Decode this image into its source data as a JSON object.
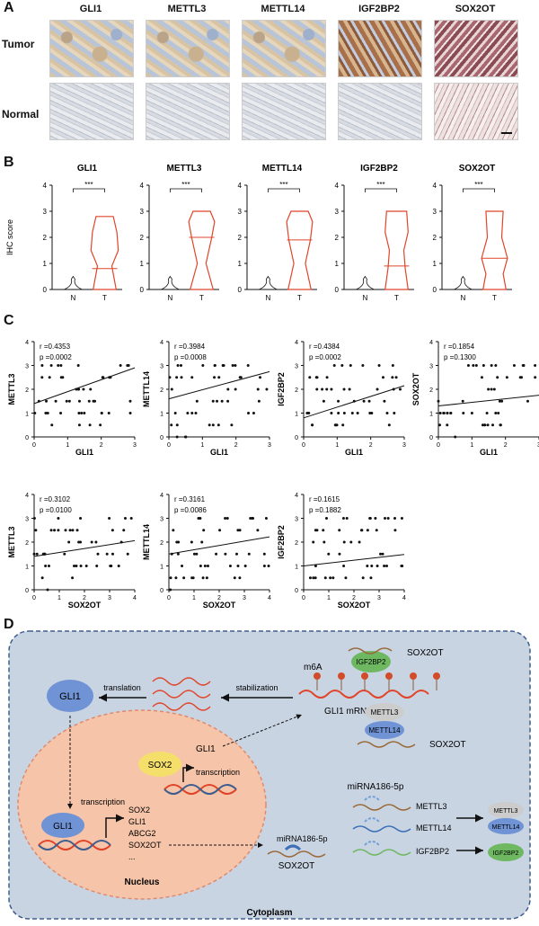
{
  "panel_a": {
    "letter": "A",
    "columns": [
      "GLI1",
      "METTL3",
      "METTL14",
      "IGF2BP2",
      "SOX2OT"
    ],
    "rows": [
      "Tumor",
      "Normal"
    ]
  },
  "panel_b": {
    "letter": "B",
    "ylabel": "IHC score",
    "yticks": [
      "0",
      "1",
      "2",
      "3",
      "4"
    ],
    "categories": [
      "N",
      "T"
    ],
    "significance": "***",
    "titles": [
      "GLI1",
      "METTL3",
      "METTL14",
      "IGF2BP2",
      "SOX2OT"
    ]
  },
  "panel_c": {
    "letter": "C",
    "plots": [
      {
        "xlabel": "GLI1",
        "ylabel": "METTL3",
        "r": "r =0.4353",
        "p": "p =0.0002",
        "xticks": [
          "0",
          "1",
          "2",
          "3"
        ]
      },
      {
        "xlabel": "GLI1",
        "ylabel": "METTL14",
        "r": "r =0.3984",
        "p": "p =0.0008",
        "xticks": [
          "0",
          "1",
          "2",
          "3"
        ]
      },
      {
        "xlabel": "GLI1",
        "ylabel": "IGF2BP2",
        "r": "r =0.4384",
        "p": "p =0.0002",
        "xticks": [
          "0",
          "1",
          "2",
          "3"
        ]
      },
      {
        "xlabel": "GLI1",
        "ylabel": "SOX2OT",
        "r": "r =0.1854",
        "p": "p =0.1300",
        "xticks": [
          "0",
          "1",
          "2",
          "3"
        ]
      },
      {
        "xlabel": "SOX2OT",
        "ylabel": "METTL3",
        "r": "r =0.3102",
        "p": "p =0.0100",
        "xticks": [
          "0",
          "1",
          "2",
          "3",
          "4"
        ]
      },
      {
        "xlabel": "SOX2OT",
        "ylabel": "METTL14",
        "r": "r =0.3161",
        "p": "p =0.0086",
        "xticks": [
          "0",
          "1",
          "2",
          "3",
          "4"
        ]
      },
      {
        "xlabel": "SOX2OT",
        "ylabel": "IGF2BP2",
        "r": "r =0.1615",
        "p": "p =0.1882",
        "xticks": [
          "0",
          "1",
          "2",
          "3",
          "4"
        ]
      }
    ],
    "yticks": [
      "0",
      "1",
      "2",
      "3",
      "4"
    ]
  },
  "chart_data": [
    {
      "type": "violin",
      "title": "GLI1",
      "categories": [
        "N",
        "T"
      ],
      "ylim": [
        0,
        4
      ],
      "ylabel": "IHC score"
    },
    {
      "type": "violin",
      "title": "METTL3",
      "categories": [
        "N",
        "T"
      ],
      "ylim": [
        0,
        4
      ]
    },
    {
      "type": "violin",
      "title": "METTL14",
      "categories": [
        "N",
        "T"
      ],
      "ylim": [
        0,
        4
      ]
    },
    {
      "type": "violin",
      "title": "IGF2BP2",
      "categories": [
        "N",
        "T"
      ],
      "ylim": [
        0,
        4
      ]
    },
    {
      "type": "violin",
      "title": "SOX2OT",
      "categories": [
        "N",
        "T"
      ],
      "ylim": [
        0,
        4
      ]
    },
    {
      "type": "scatter",
      "xlabel": "GLI1",
      "ylabel": "METTL3",
      "xlim": [
        0,
        3
      ],
      "ylim": [
        0,
        4
      ],
      "r": 0.4353,
      "p": 0.0002
    },
    {
      "type": "scatter",
      "xlabel": "GLI1",
      "ylabel": "METTL14",
      "xlim": [
        0,
        3
      ],
      "ylim": [
        0,
        4
      ],
      "r": 0.3984,
      "p": 0.0008
    },
    {
      "type": "scatter",
      "xlabel": "GLI1",
      "ylabel": "IGF2BP2",
      "xlim": [
        0,
        3
      ],
      "ylim": [
        0,
        4
      ],
      "r": 0.4384,
      "p": 0.0002
    },
    {
      "type": "scatter",
      "xlabel": "GLI1",
      "ylabel": "SOX2OT",
      "xlim": [
        0,
        3
      ],
      "ylim": [
        0,
        4
      ],
      "r": 0.1854,
      "p": 0.13
    },
    {
      "type": "scatter",
      "xlabel": "SOX2OT",
      "ylabel": "METTL3",
      "xlim": [
        0,
        4
      ],
      "ylim": [
        0,
        4
      ],
      "r": 0.3102,
      "p": 0.01
    },
    {
      "type": "scatter",
      "xlabel": "SOX2OT",
      "ylabel": "METTL14",
      "xlim": [
        0,
        4
      ],
      "ylim": [
        0,
        4
      ],
      "r": 0.3161,
      "p": 0.0086
    },
    {
      "type": "scatter",
      "xlabel": "SOX2OT",
      "ylabel": "IGF2BP2",
      "xlim": [
        0,
        4
      ],
      "ylim": [
        0,
        4
      ],
      "r": 0.1615,
      "p": 0.1882
    }
  ],
  "panel_d": {
    "letter": "D",
    "gli1_cyto": "GLI1",
    "translation": "translation",
    "stabilization": "stabilization",
    "m6a": "m6A",
    "gli1_mrna": "GLI1 mRNA",
    "igf2bp2": "IGF2BP2",
    "sox2ot": "SOX2OT",
    "mettl3": "METTL3",
    "mettl14": "METTL14",
    "sox2ot_2": "SOX2OT",
    "gli1_tf": "GLI1",
    "sox2": "SOX2",
    "transcription1": "transcription",
    "gli1_nuc": "GLI1",
    "transcription2": "transcription",
    "targets": [
      "SOX2",
      "GLI1",
      "ABCG2",
      "SOX2OT",
      "..."
    ],
    "mirna_left": "miRNA186-5p",
    "sox2ot_sponge": "SOX2OT",
    "mirna_top": "miRNA186-5p",
    "mettl3_r": "METTL3",
    "mettl14_r": "METTL14",
    "igf2bp2_r": "IGF2BP2",
    "mettl3_prot": "METTL3",
    "mettl14_prot": "METTL14",
    "igf2bp2_prot": "IGF2BP2",
    "nucleus": "Nucleus",
    "cytoplasm": "Cytoplasm"
  },
  "colors": {
    "violin": "#e0452a",
    "cell": "#c9d4e3",
    "nucleus": "#f6c4a8",
    "gli1": "#6f93d4",
    "sox2": "#f5df6b",
    "igf2bp2": "#6db860",
    "rna": "#e0452a"
  }
}
